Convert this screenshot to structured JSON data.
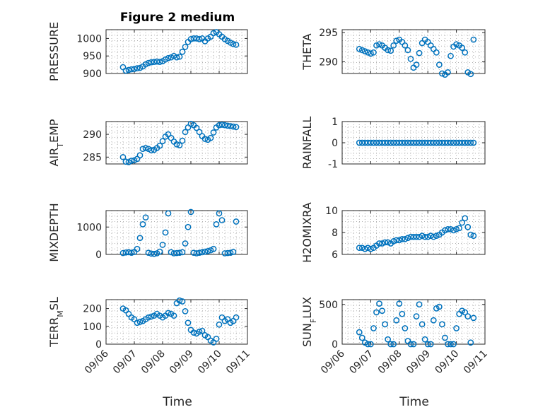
{
  "figure": {
    "title": "Figure 2 medium",
    "accent_color": "#0072BD",
    "grid": true
  },
  "chart_data": [
    {
      "type": "scatter",
      "ylabel": "PRESSURE",
      "xlabel": "",
      "yticks": [
        "900",
        "950",
        "1000"
      ],
      "ylim": [
        900,
        1025
      ],
      "xlim": [
        0,
        5
      ],
      "show_xticks": false,
      "x": [
        0.6,
        0.7,
        0.8,
        0.9,
        1.0,
        1.1,
        1.2,
        1.3,
        1.4,
        1.5,
        1.6,
        1.7,
        1.8,
        1.9,
        2.0,
        2.1,
        2.2,
        2.3,
        2.4,
        2.5,
        2.6,
        2.7,
        2.8,
        2.9,
        3.0,
        3.1,
        3.2,
        3.3,
        3.4,
        3.5,
        3.6,
        3.7,
        3.8,
        3.9,
        4.0,
        4.1,
        4.2,
        4.3,
        4.4,
        4.5,
        4.6
      ],
      "y": [
        918,
        908,
        910,
        912,
        913,
        915,
        916,
        920,
        926,
        930,
        932,
        933,
        934,
        933,
        935,
        940,
        944,
        946,
        950,
        946,
        948,
        962,
        976,
        990,
        998,
        1000,
        1000,
        998,
        1000,
        992,
        1000,
        1005,
        1015,
        1018,
        1012,
        1005,
        998,
        993,
        988,
        984,
        982
      ]
    },
    {
      "type": "scatter",
      "ylabel": "THETA",
      "xlabel": "",
      "yticks": [
        "290",
        "295"
      ],
      "ylim": [
        288,
        295.5
      ],
      "xlim": [
        0,
        5
      ],
      "show_xticks": false,
      "x": [
        0.6,
        0.7,
        0.8,
        0.9,
        1.0,
        1.1,
        1.2,
        1.3,
        1.4,
        1.5,
        1.6,
        1.7,
        1.8,
        1.9,
        2.0,
        2.1,
        2.2,
        2.3,
        2.4,
        2.5,
        2.6,
        2.7,
        2.8,
        2.9,
        3.0,
        3.1,
        3.2,
        3.3,
        3.4,
        3.5,
        3.6,
        3.7,
        3.8,
        3.9,
        4.0,
        4.1,
        4.2,
        4.3,
        4.4,
        4.5,
        4.6
      ],
      "y": [
        292.2,
        292.0,
        291.8,
        291.6,
        291.4,
        291.6,
        292.8,
        293.0,
        292.8,
        292.4,
        292.0,
        291.9,
        292.8,
        293.6,
        293.8,
        293.4,
        292.8,
        292.0,
        290.5,
        289.0,
        289.5,
        291.5,
        293.2,
        293.8,
        293.4,
        292.8,
        292.2,
        291.6,
        289.5,
        288.0,
        287.8,
        288.2,
        291.0,
        292.6,
        293.0,
        292.8,
        292.4,
        291.6,
        288.2,
        287.9,
        293.8
      ]
    },
    {
      "type": "scatter",
      "ylabel": "AIR_TEMP",
      "xlabel": "",
      "yticks": [
        "285",
        "290"
      ],
      "ylim": [
        283.5,
        292.8
      ],
      "xlim": [
        0,
        5
      ],
      "show_xticks": false,
      "x": [
        0.6,
        0.7,
        0.8,
        0.9,
        1.0,
        1.1,
        1.2,
        1.3,
        1.4,
        1.5,
        1.6,
        1.7,
        1.8,
        1.9,
        2.0,
        2.1,
        2.2,
        2.3,
        2.4,
        2.5,
        2.6,
        2.7,
        2.8,
        2.9,
        3.0,
        3.1,
        3.2,
        3.3,
        3.4,
        3.5,
        3.6,
        3.7,
        3.8,
        3.9,
        4.0,
        4.1,
        4.2,
        4.3,
        4.4,
        4.5,
        4.6
      ],
      "y": [
        285.0,
        284.0,
        283.9,
        284.2,
        284.3,
        284.6,
        285.4,
        286.8,
        287.0,
        286.8,
        286.5,
        286.6,
        287.0,
        287.5,
        288.5,
        289.5,
        290.0,
        289.2,
        288.4,
        287.8,
        287.6,
        288.6,
        290.5,
        291.5,
        292.3,
        292.0,
        291.4,
        290.5,
        289.6,
        289.0,
        288.8,
        289.2,
        290.4,
        291.5,
        292.0,
        292.1,
        292.0,
        291.9,
        291.8,
        291.7,
        291.6
      ]
    },
    {
      "type": "scatter",
      "ylabel": "RAINFALL",
      "xlabel": "",
      "yticks": [
        "-1",
        "0",
        "1"
      ],
      "ylim": [
        -1,
        1
      ],
      "xlim": [
        0,
        5
      ],
      "show_xticks": false,
      "x": [
        0.6,
        0.7,
        0.8,
        0.9,
        1.0,
        1.1,
        1.2,
        1.3,
        1.4,
        1.5,
        1.6,
        1.7,
        1.8,
        1.9,
        2.0,
        2.1,
        2.2,
        2.3,
        2.4,
        2.5,
        2.6,
        2.7,
        2.8,
        2.9,
        3.0,
        3.1,
        3.2,
        3.3,
        3.4,
        3.5,
        3.6,
        3.7,
        3.8,
        3.9,
        4.0,
        4.1,
        4.2,
        4.3,
        4.4,
        4.5,
        4.6
      ],
      "y": [
        0,
        0,
        0,
        0,
        0,
        0,
        0,
        0,
        0,
        0,
        0,
        0,
        0,
        0,
        0,
        0,
        0,
        0,
        0,
        0,
        0,
        0,
        0,
        0,
        0,
        0,
        0,
        0,
        0,
        0,
        0,
        0,
        0,
        0,
        0,
        0,
        0,
        0,
        0,
        0,
        0
      ]
    },
    {
      "type": "scatter",
      "ylabel": "MIXDEPTH",
      "xlabel": "",
      "yticks": [
        "0",
        "1000"
      ],
      "ylim": [
        0,
        1600
      ],
      "xlim": [
        0,
        5
      ],
      "show_xticks": false,
      "x": [
        0.6,
        0.7,
        0.8,
        0.9,
        1.0,
        1.1,
        1.2,
        1.3,
        1.4,
        1.5,
        1.6,
        1.7,
        1.8,
        1.9,
        2.0,
        2.1,
        2.2,
        2.3,
        2.4,
        2.5,
        2.6,
        2.7,
        2.8,
        2.9,
        3.0,
        3.1,
        3.2,
        3.3,
        3.4,
        3.5,
        3.6,
        3.7,
        3.8,
        3.9,
        4.0,
        4.1,
        4.2,
        4.3,
        4.4,
        4.5,
        4.6
      ],
      "y": [
        50,
        70,
        80,
        60,
        90,
        200,
        600,
        1100,
        1350,
        60,
        30,
        20,
        40,
        100,
        350,
        800,
        1500,
        80,
        40,
        50,
        60,
        80,
        400,
        1000,
        1550,
        60,
        40,
        60,
        80,
        100,
        120,
        150,
        200,
        1100,
        1500,
        1250,
        40,
        50,
        60,
        90,
        1200
      ]
    },
    {
      "type": "scatter",
      "ylabel": "H2OMIXRA",
      "xlabel": "",
      "yticks": [
        "6",
        "8",
        "10"
      ],
      "ylim": [
        6,
        10
      ],
      "xlim": [
        0,
        5
      ],
      "show_xticks": false,
      "x": [
        0.6,
        0.7,
        0.8,
        0.9,
        1.0,
        1.1,
        1.2,
        1.3,
        1.4,
        1.5,
        1.6,
        1.7,
        1.8,
        1.9,
        2.0,
        2.1,
        2.2,
        2.3,
        2.4,
        2.5,
        2.6,
        2.7,
        2.8,
        2.9,
        3.0,
        3.1,
        3.2,
        3.3,
        3.4,
        3.5,
        3.6,
        3.7,
        3.8,
        3.9,
        4.0,
        4.1,
        4.2,
        4.3,
        4.4,
        4.5,
        4.6
      ],
      "y": [
        6.6,
        6.6,
        6.5,
        6.6,
        6.5,
        6.6,
        6.8,
        7.0,
        7.0,
        7.1,
        7.1,
        7.0,
        7.2,
        7.3,
        7.3,
        7.4,
        7.4,
        7.5,
        7.6,
        7.6,
        7.6,
        7.6,
        7.7,
        7.6,
        7.6,
        7.7,
        7.6,
        7.7,
        7.8,
        8.0,
        8.2,
        8.3,
        8.3,
        8.2,
        8.3,
        8.4,
        8.9,
        9.3,
        8.5,
        7.8,
        7.7
      ]
    },
    {
      "type": "scatter",
      "ylabel": "TERR_MSL",
      "xlabel": "Time",
      "yticks": [
        "0",
        "100",
        "200"
      ],
      "ylim": [
        0,
        250
      ],
      "xlim": [
        0,
        5
      ],
      "show_xticks": true,
      "xticks": [
        "09/06",
        "09/07",
        "09/08",
        "09/09",
        "09/10",
        "09/11"
      ],
      "x": [
        0.6,
        0.7,
        0.8,
        0.9,
        1.0,
        1.1,
        1.2,
        1.3,
        1.4,
        1.5,
        1.6,
        1.7,
        1.8,
        1.9,
        2.0,
        2.1,
        2.2,
        2.3,
        2.4,
        2.5,
        2.6,
        2.7,
        2.8,
        2.9,
        3.0,
        3.1,
        3.2,
        3.3,
        3.4,
        3.5,
        3.6,
        3.7,
        3.8,
        3.9,
        4.0,
        4.1,
        4.2,
        4.3,
        4.4,
        4.5,
        4.6
      ],
      "y": [
        200,
        190,
        170,
        150,
        140,
        120,
        125,
        130,
        140,
        150,
        155,
        160,
        170,
        160,
        150,
        160,
        175,
        170,
        160,
        230,
        245,
        240,
        185,
        120,
        80,
        65,
        60,
        70,
        75,
        50,
        40,
        20,
        10,
        30,
        110,
        150,
        130,
        140,
        120,
        130,
        150
      ]
    },
    {
      "type": "scatter",
      "ylabel": "SUN_FLUX",
      "xlabel": "Time",
      "yticks": [
        "0",
        "500"
      ],
      "ylim": [
        0,
        560
      ],
      "xlim": [
        0,
        5
      ],
      "show_xticks": true,
      "xticks": [
        "09/06",
        "09/07",
        "09/08",
        "09/09",
        "09/10",
        "09/11"
      ],
      "x": [
        0.6,
        0.7,
        0.8,
        0.9,
        1.0,
        1.1,
        1.2,
        1.3,
        1.4,
        1.5,
        1.6,
        1.7,
        1.8,
        1.9,
        2.0,
        2.1,
        2.2,
        2.3,
        2.4,
        2.5,
        2.6,
        2.7,
        2.8,
        2.9,
        3.0,
        3.1,
        3.2,
        3.3,
        3.4,
        3.5,
        3.6,
        3.7,
        3.8,
        3.9,
        4.0,
        4.1,
        4.2,
        4.3,
        4.4,
        4.5,
        4.6
      ],
      "y": [
        150,
        80,
        20,
        0,
        0,
        200,
        400,
        510,
        420,
        250,
        60,
        0,
        0,
        300,
        510,
        380,
        200,
        40,
        0,
        0,
        350,
        500,
        250,
        60,
        0,
        0,
        300,
        450,
        470,
        250,
        80,
        0,
        0,
        0,
        200,
        380,
        420,
        400,
        350,
        20,
        330
      ]
    }
  ]
}
